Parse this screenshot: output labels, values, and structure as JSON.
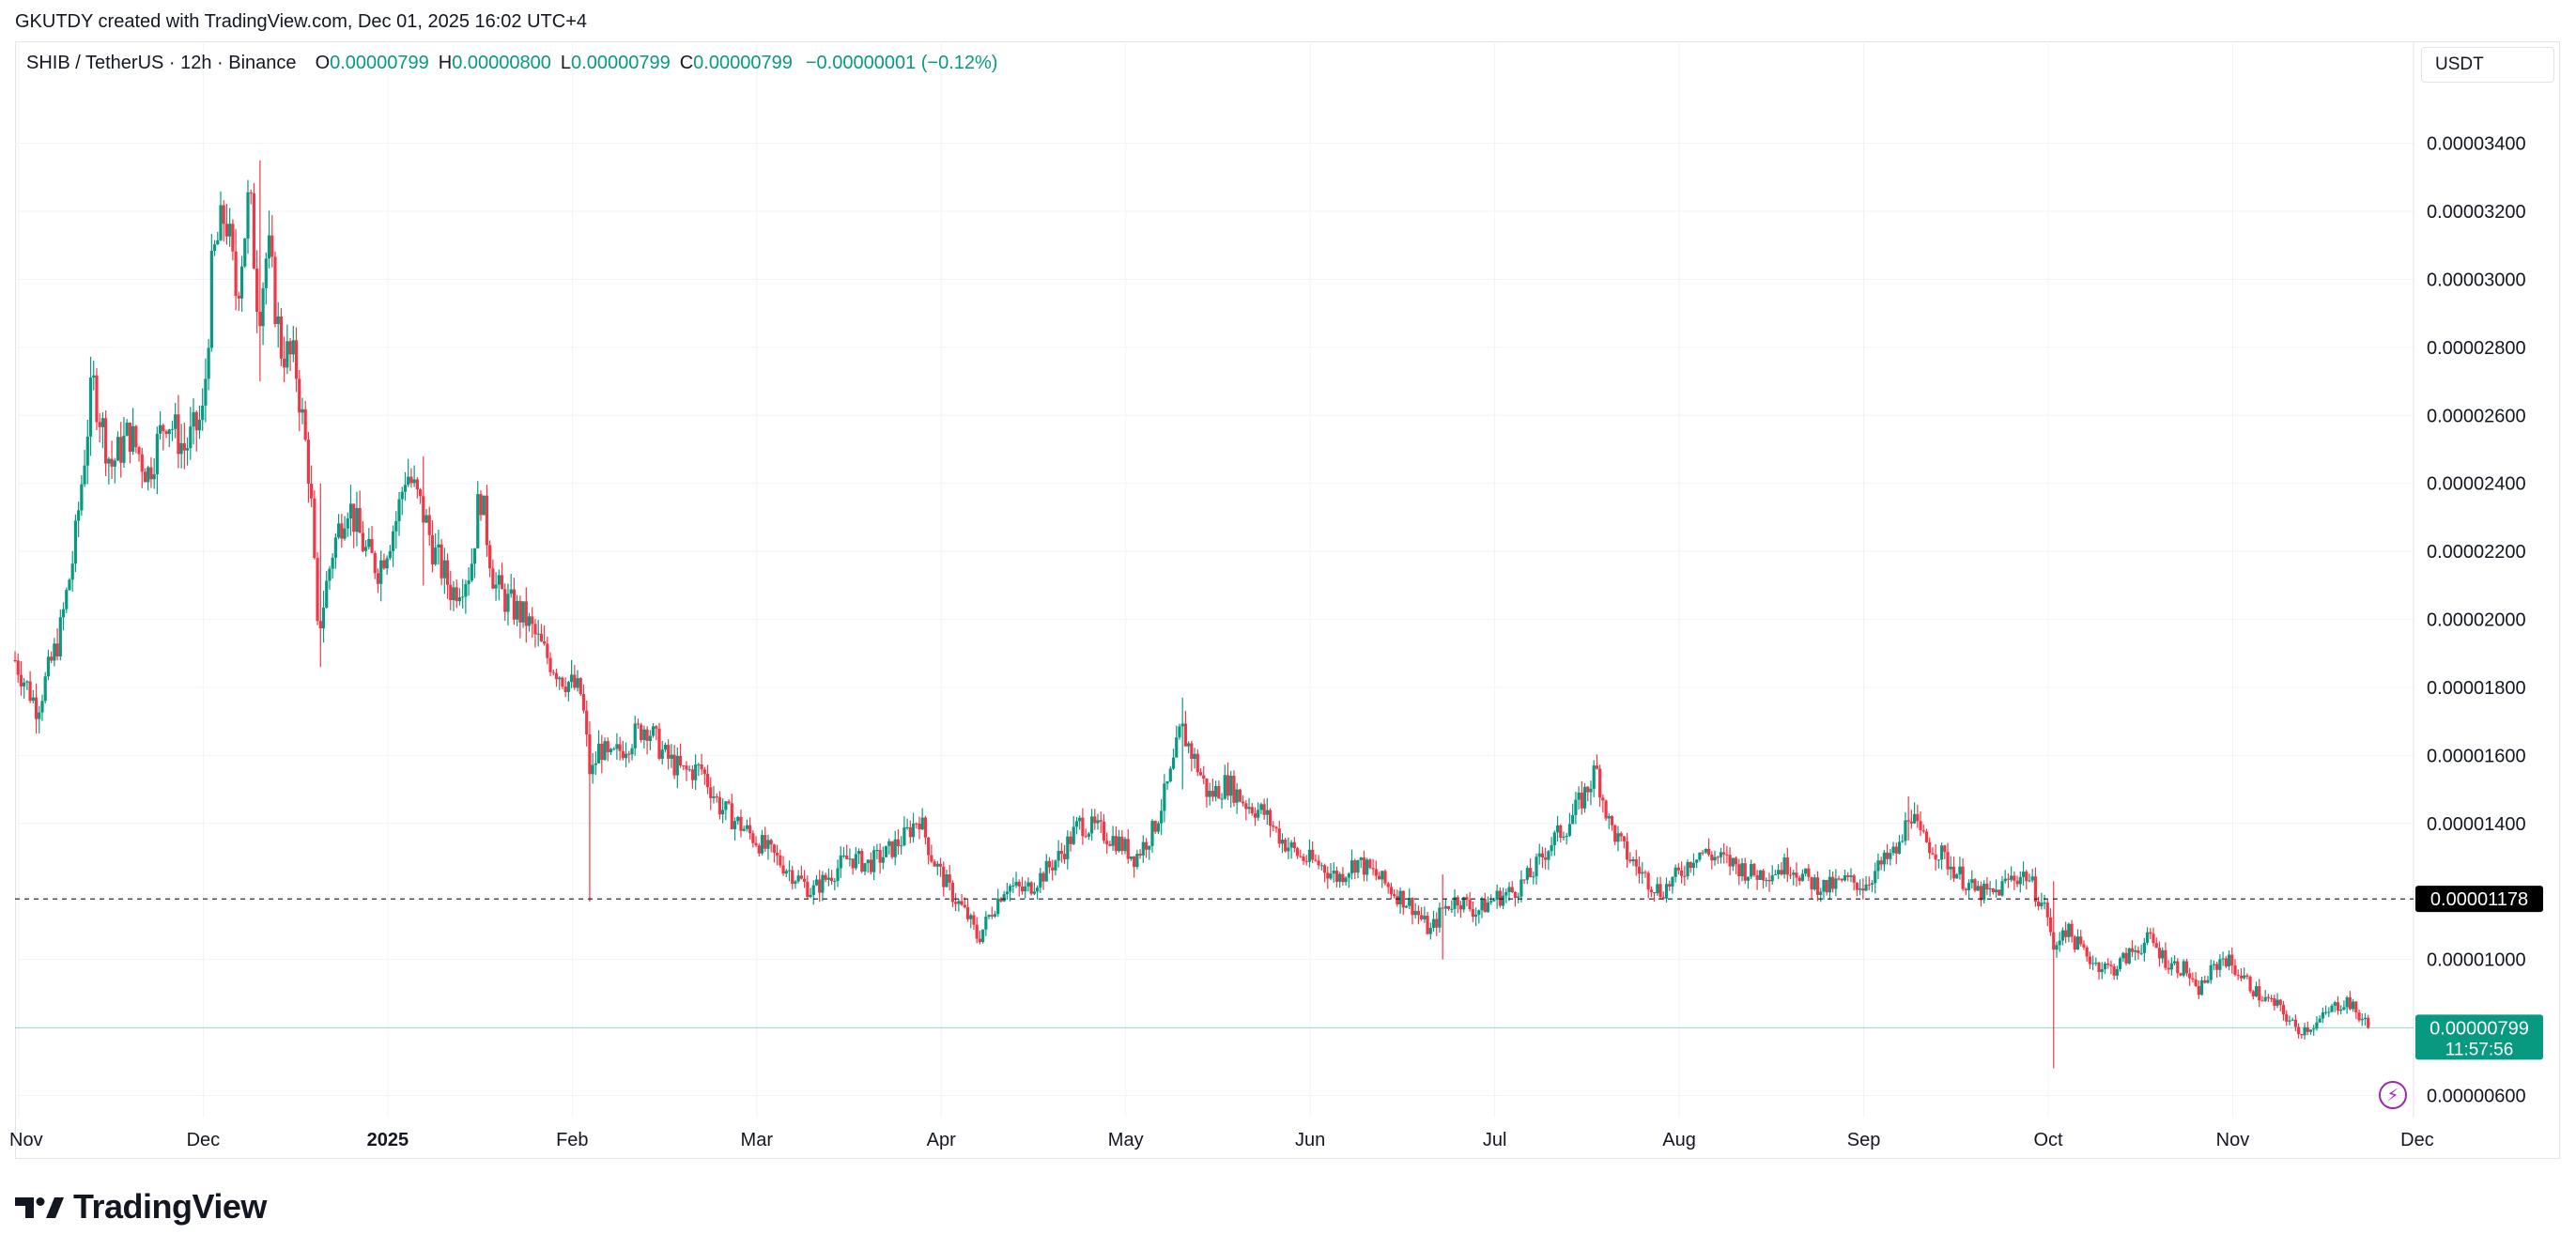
{
  "credit": "GKUTDY created with TradingView.com, Dec 01, 2025 16:02 UTC+4",
  "legend": {
    "symbol": "SHIB / TetherUS · 12h · Binance",
    "o_label": "O",
    "o_value": "0.00000799",
    "h_label": "H",
    "h_value": "0.00000800",
    "l_label": "L",
    "l_value": "0.00000799",
    "c_label": "C",
    "c_value": "0.00000799",
    "change": "−0.00000001 (−0.12%)"
  },
  "currency": "USDT",
  "brand": "TradingView",
  "colors": {
    "up": "#089981",
    "down": "#f23645",
    "grid": "#f0f3fa",
    "last_price_bg": "#089981",
    "marker_bg": "#000000",
    "bolt": "#9c27b0"
  },
  "icons": [
    "tradingview-logo-icon",
    "lightning-icon"
  ],
  "chart_data": {
    "type": "candlestick",
    "title": "",
    "y_axis": {
      "ticks": [
        "0.00003400",
        "0.00003200",
        "0.00003000",
        "0.00002800",
        "0.00002600",
        "0.00002400",
        "0.00002200",
        "0.00002000",
        "0.00001800",
        "0.00001600",
        "0.00001400",
        "0.00001000",
        "0.00000600"
      ],
      "tick_values": [
        34,
        32,
        30,
        28,
        26,
        24,
        22,
        20,
        18,
        16,
        14,
        10,
        6
      ],
      "ylim": [
        5.35,
        37.0
      ],
      "unit_scale": "1e-6 USDT"
    },
    "x_axis": {
      "ticks": [
        {
          "label": "Nov",
          "month": 0,
          "bold": false
        },
        {
          "label": "Dec",
          "month": 1,
          "bold": false
        },
        {
          "label": "2025",
          "month": 2,
          "bold": true
        },
        {
          "label": "Feb",
          "month": 3,
          "bold": false
        },
        {
          "label": "Mar",
          "month": 4,
          "bold": false
        },
        {
          "label": "Apr",
          "month": 5,
          "bold": false
        },
        {
          "label": "May",
          "month": 6,
          "bold": false
        },
        {
          "label": "Jun",
          "month": 7,
          "bold": false
        },
        {
          "label": "Jul",
          "month": 8,
          "bold": false
        },
        {
          "label": "Aug",
          "month": 9,
          "bold": false
        },
        {
          "label": "Sep",
          "month": 10,
          "bold": false
        },
        {
          "label": "Oct",
          "month": 11,
          "bold": false
        },
        {
          "label": "Nov",
          "month": 12,
          "bold": false
        },
        {
          "label": "Dec",
          "month": 13,
          "bold": false
        }
      ],
      "xlim_months": [
        -0.02,
        12.98
      ]
    },
    "price_path": [
      [
        -0.02,
        18.8
      ],
      [
        0.1,
        17.4
      ],
      [
        0.22,
        19.5
      ],
      [
        0.3,
        22.0
      ],
      [
        0.4,
        27.0
      ],
      [
        0.5,
        24.5
      ],
      [
        0.6,
        25.5
      ],
      [
        0.7,
        24.3
      ],
      [
        0.8,
        26.0
      ],
      [
        0.9,
        25.0
      ],
      [
        1.0,
        26.0
      ],
      [
        1.05,
        30.5
      ],
      [
        1.12,
        32.0
      ],
      [
        1.18,
        29.5
      ],
      [
        1.25,
        32.5
      ],
      [
        1.3,
        29.0
      ],
      [
        1.35,
        31.0
      ],
      [
        1.42,
        28.0
      ],
      [
        1.5,
        27.5
      ],
      [
        1.58,
        24.0
      ],
      [
        1.62,
        19.5
      ],
      [
        1.7,
        22.0
      ],
      [
        1.78,
        23.5
      ],
      [
        1.88,
        22.0
      ],
      [
        1.95,
        21.5
      ],
      [
        2.05,
        23.0
      ],
      [
        2.1,
        24.4
      ],
      [
        2.2,
        23.0
      ],
      [
        2.25,
        22.0
      ],
      [
        2.35,
        20.8
      ],
      [
        2.45,
        21.5
      ],
      [
        2.5,
        23.8
      ],
      [
        2.58,
        21.0
      ],
      [
        2.65,
        20.5
      ],
      [
        2.75,
        20.0
      ],
      [
        2.85,
        19.0
      ],
      [
        2.95,
        18.3
      ],
      [
        3.05,
        17.8
      ],
      [
        3.1,
        15.3
      ],
      [
        3.15,
        16.3
      ],
      [
        3.2,
        15.8
      ],
      [
        3.3,
        16.4
      ],
      [
        3.4,
        16.9
      ],
      [
        3.5,
        16.0
      ],
      [
        3.6,
        15.5
      ],
      [
        3.7,
        15.6
      ],
      [
        3.8,
        14.5
      ],
      [
        3.9,
        14.0
      ],
      [
        4.0,
        13.5
      ],
      [
        4.1,
        13.0
      ],
      [
        4.2,
        12.5
      ],
      [
        4.3,
        12.0
      ],
      [
        4.4,
        12.5
      ],
      [
        4.5,
        13.0
      ],
      [
        4.6,
        12.8
      ],
      [
        4.7,
        13.1
      ],
      [
        4.8,
        13.6
      ],
      [
        4.88,
        14.2
      ],
      [
        4.95,
        13.0
      ],
      [
        5.05,
        12.0
      ],
      [
        5.15,
        11.2
      ],
      [
        5.2,
        10.6
      ],
      [
        5.28,
        11.5
      ],
      [
        5.35,
        12.2
      ],
      [
        5.45,
        12.0
      ],
      [
        5.55,
        12.5
      ],
      [
        5.65,
        13.1
      ],
      [
        5.75,
        14.0
      ],
      [
        5.85,
        13.8
      ],
      [
        5.95,
        13.5
      ],
      [
        6.05,
        13.0
      ],
      [
        6.15,
        13.8
      ],
      [
        6.25,
        15.5
      ],
      [
        6.3,
        16.8
      ],
      [
        6.38,
        15.8
      ],
      [
        6.45,
        14.8
      ],
      [
        6.55,
        15.2
      ],
      [
        6.65,
        14.6
      ],
      [
        6.75,
        14.3
      ],
      [
        6.85,
        13.5
      ],
      [
        6.95,
        13.0
      ],
      [
        7.05,
        12.8
      ],
      [
        7.15,
        12.4
      ],
      [
        7.25,
        12.9
      ],
      [
        7.35,
        12.5
      ],
      [
        7.45,
        12.0
      ],
      [
        7.55,
        11.6
      ],
      [
        7.65,
        10.8
      ],
      [
        7.72,
        11.5
      ],
      [
        7.8,
        11.8
      ],
      [
        7.9,
        11.4
      ],
      [
        8.0,
        11.8
      ],
      [
        8.1,
        12.0
      ],
      [
        8.2,
        12.5
      ],
      [
        8.3,
        13.4
      ],
      [
        8.4,
        14.0
      ],
      [
        8.5,
        15.0
      ],
      [
        8.55,
        15.6
      ],
      [
        8.62,
        14.0
      ],
      [
        8.7,
        13.2
      ],
      [
        8.8,
        12.5
      ],
      [
        8.9,
        12.0
      ],
      [
        9.0,
        12.5
      ],
      [
        9.1,
        13.2
      ],
      [
        9.2,
        13.0
      ],
      [
        9.3,
        12.8
      ],
      [
        9.4,
        12.5
      ],
      [
        9.5,
        12.6
      ],
      [
        9.6,
        12.8
      ],
      [
        9.7,
        12.3
      ],
      [
        9.8,
        12.1
      ],
      [
        9.9,
        12.3
      ],
      [
        10.0,
        12.2
      ],
      [
        10.1,
        12.8
      ],
      [
        10.2,
        13.3
      ],
      [
        10.25,
        14.5
      ],
      [
        10.3,
        13.6
      ],
      [
        10.4,
        13.2
      ],
      [
        10.5,
        12.6
      ],
      [
        10.6,
        12.0
      ],
      [
        10.7,
        11.9
      ],
      [
        10.8,
        12.4
      ],
      [
        10.88,
        12.5
      ],
      [
        10.95,
        11.8
      ],
      [
        11.0,
        11.3
      ],
      [
        11.03,
        10.1
      ],
      [
        11.08,
        11.0
      ],
      [
        11.15,
        10.5
      ],
      [
        11.25,
        9.9
      ],
      [
        11.35,
        9.7
      ],
      [
        11.45,
        10.2
      ],
      [
        11.55,
        10.6
      ],
      [
        11.65,
        9.9
      ],
      [
        11.75,
        9.7
      ],
      [
        11.8,
        9.0
      ],
      [
        11.88,
        9.6
      ],
      [
        11.95,
        10.1
      ],
      [
        12.05,
        9.5
      ],
      [
        12.15,
        8.9
      ],
      [
        12.25,
        8.6
      ],
      [
        12.35,
        7.9
      ],
      [
        12.45,
        8.1
      ],
      [
        12.55,
        8.6
      ],
      [
        12.62,
        8.8
      ],
      [
        12.68,
        8.35
      ],
      [
        12.75,
        7.99
      ]
    ],
    "notable_wicks": [
      {
        "month": 1.63,
        "low": 18.6,
        "high": 24.0
      },
      {
        "month": 2.2,
        "low": 21.0,
        "high": 24.8
      },
      {
        "month": 3.1,
        "low": 11.7,
        "high": 17.0
      },
      {
        "month": 6.3,
        "low": 15.0,
        "high": 17.7
      },
      {
        "month": 7.72,
        "low": 10.0,
        "high": 12.5
      },
      {
        "month": 11.03,
        "low": 6.8,
        "high": 12.3
      },
      {
        "month": 10.25,
        "low": 13.5,
        "high": 14.8
      },
      {
        "month": 1.3,
        "low": 27.0,
        "high": 33.5
      }
    ],
    "reference_line": {
      "value": 11.78,
      "label": "0.00001178",
      "style": "dashed"
    },
    "last_price": {
      "value": 7.99,
      "label": "0.00000799",
      "countdown": "11:57:56"
    }
  }
}
